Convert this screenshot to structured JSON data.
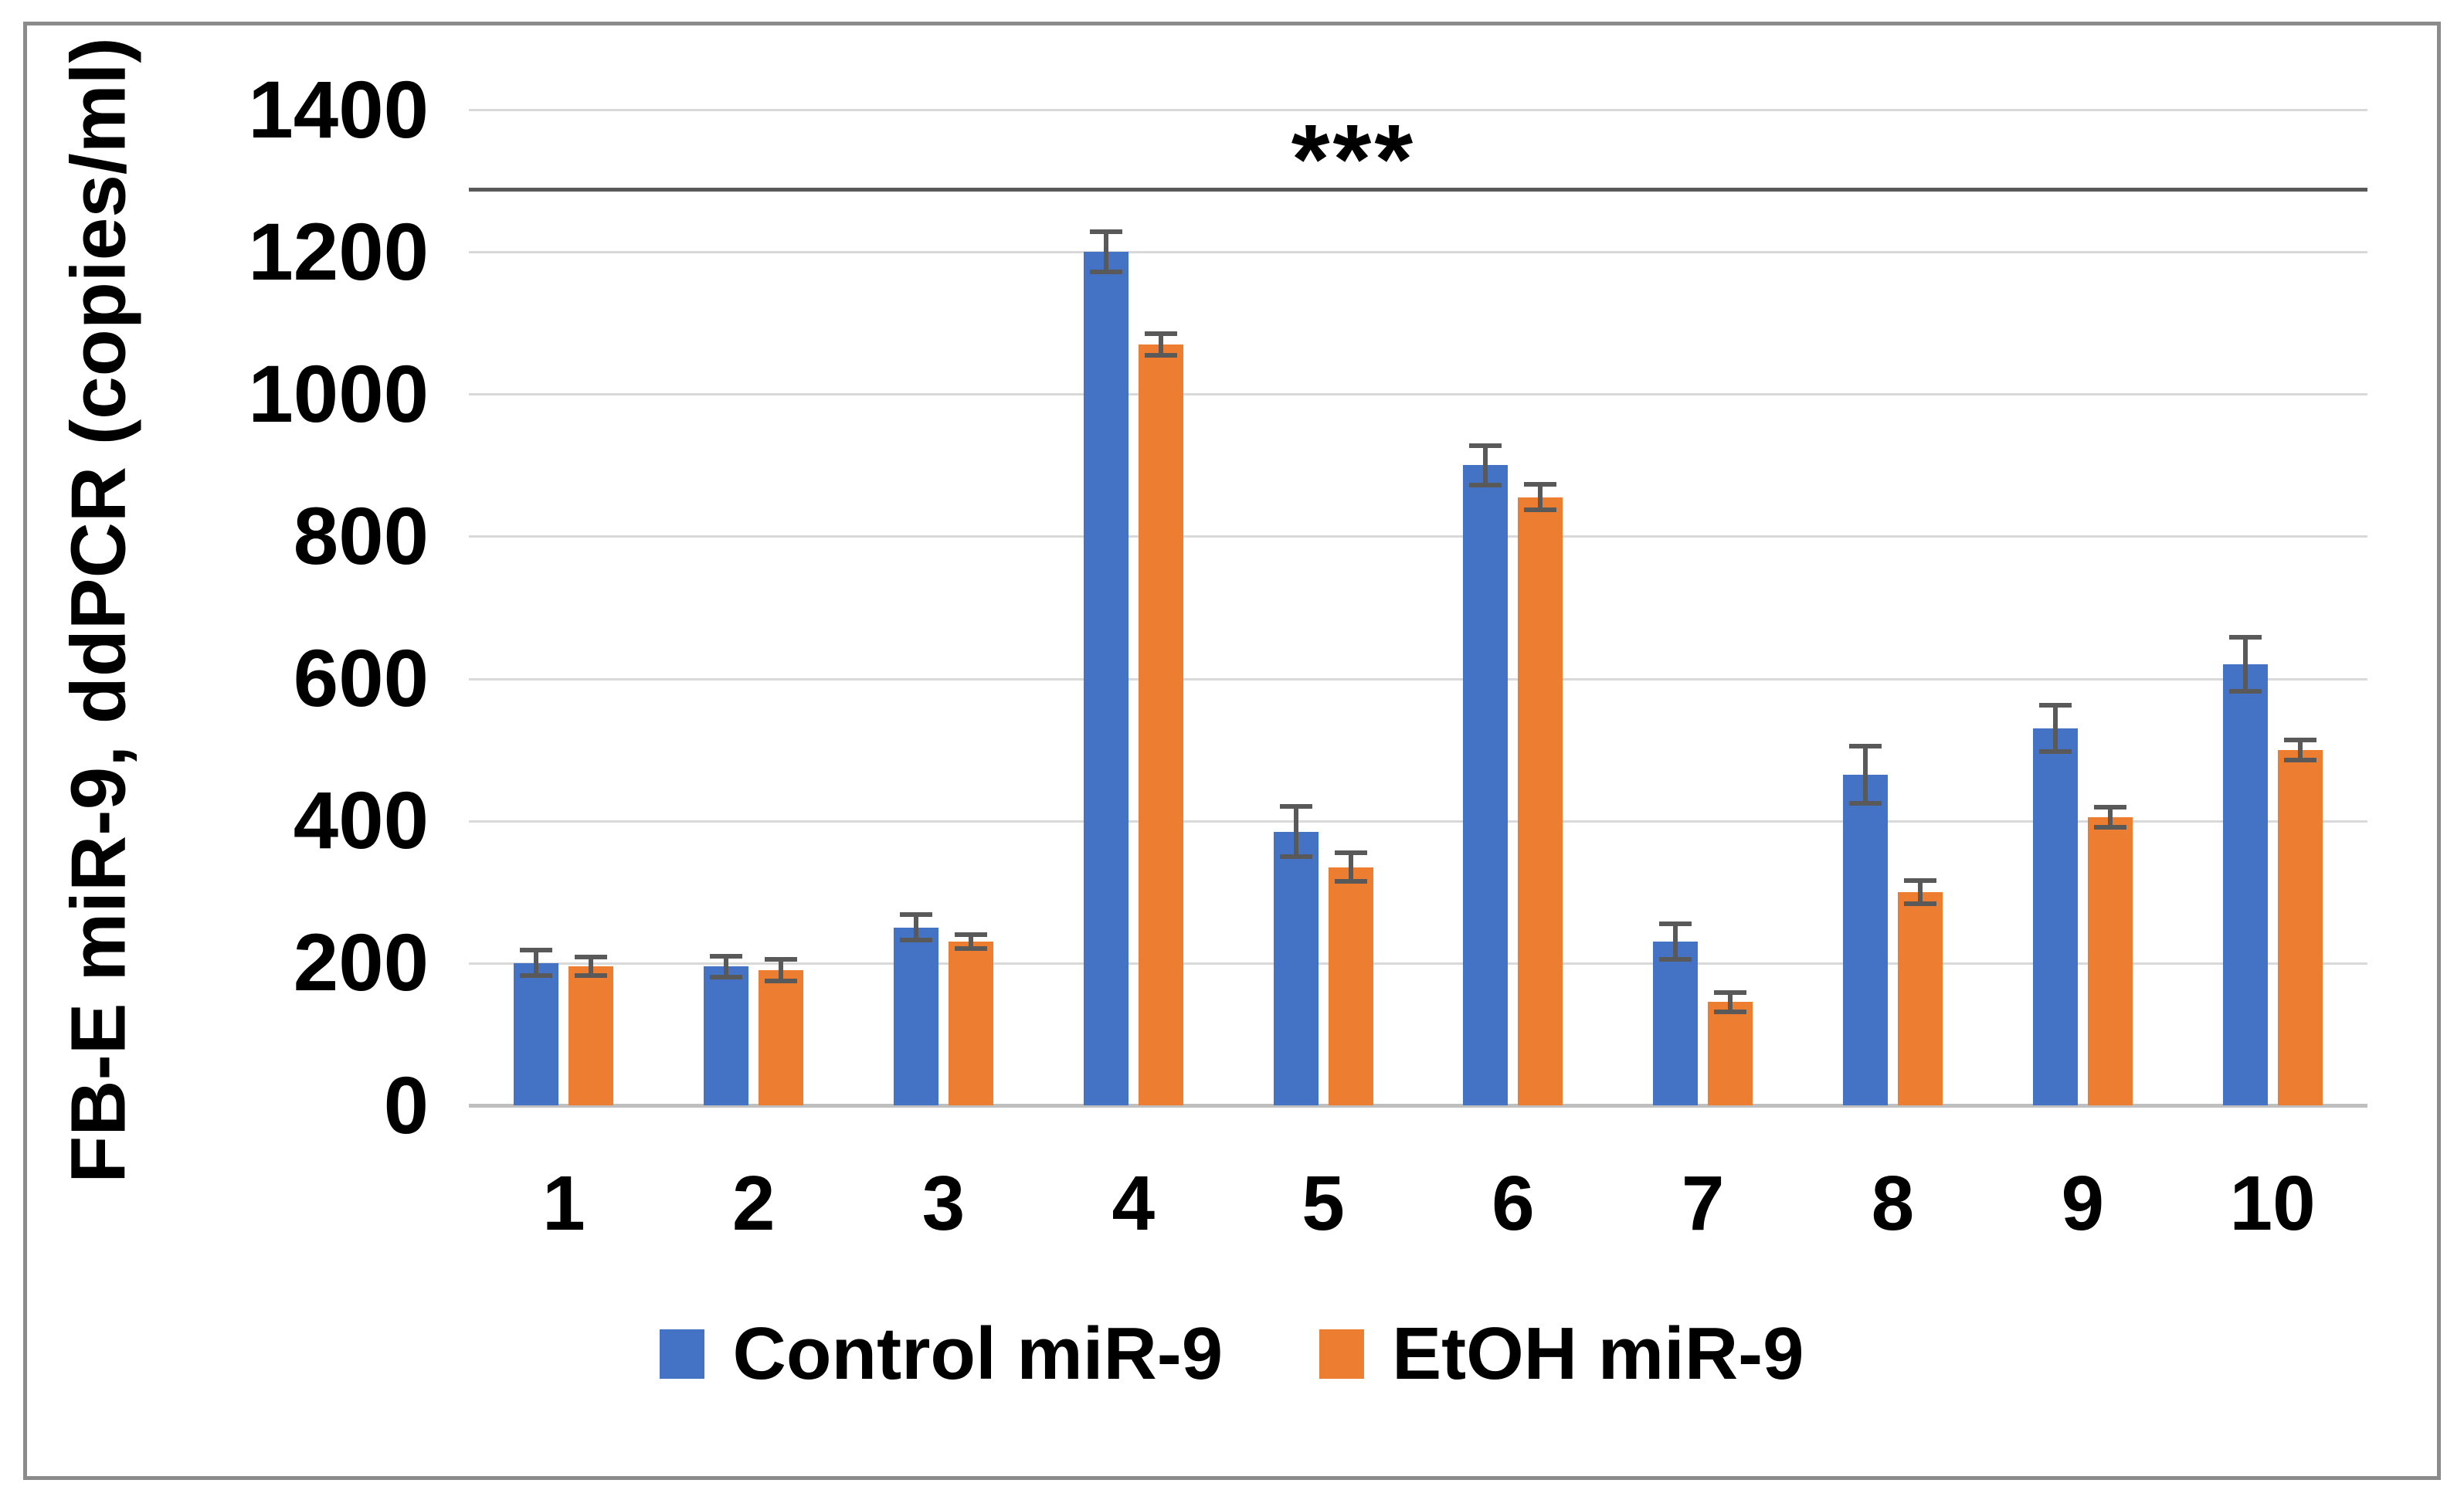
{
  "figure": {
    "background": "#ffffff",
    "border_color": "#8b8b8b"
  },
  "chart_data": {
    "type": "bar",
    "title": "",
    "xlabel": "",
    "ylabel": "FB-E miR-9, ddPCR (copies/ml)",
    "categories": [
      "1",
      "2",
      "3",
      "4",
      "5",
      "6",
      "7",
      "8",
      "9",
      "10"
    ],
    "series": [
      {
        "name": "Control miR-9",
        "color": "#4472C4",
        "values": [
          200,
          195,
          250,
          1200,
          385,
          900,
          230,
          465,
          530,
          620
        ],
        "errors": [
          18,
          15,
          18,
          28,
          35,
          28,
          25,
          40,
          33,
          38
        ]
      },
      {
        "name": "EtOH miR-9",
        "color": "#ED7D31",
        "values": [
          195,
          190,
          230,
          1070,
          335,
          855,
          145,
          300,
          405,
          500
        ],
        "errors": [
          13,
          15,
          10,
          15,
          20,
          18,
          14,
          16,
          14,
          14
        ]
      }
    ],
    "ylim": [
      0,
      1400
    ],
    "yticks": [
      0,
      200,
      400,
      600,
      800,
      1000,
      1200,
      1400
    ],
    "grid": true,
    "gridline_color": "#D9D9D9",
    "axis_line_color": "#BFBFBF",
    "error_bar_color": "#595959",
    "legend_position": "bottom",
    "annotation": {
      "text": "***",
      "line_value": 1290,
      "line_color": "#595959",
      "spans": "all-categories"
    }
  }
}
